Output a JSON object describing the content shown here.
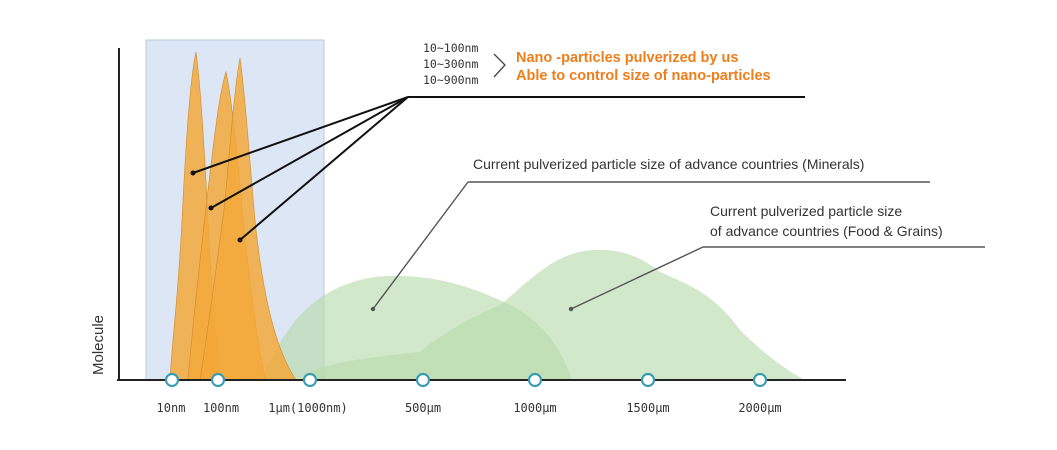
{
  "chart_data": {
    "type": "area",
    "ylabel": "Molecule",
    "x_ticks": [
      "10nm",
      "100nm",
      "1µm(1000nm)",
      "500µm",
      "1000µm",
      "1500µm",
      "2000µm"
    ],
    "highlight_region": "10nm – 1µm",
    "series": [
      {
        "color": "#f3a83a",
        "peak_near": "10nm"
      },
      {
        "color": "#f3a83a",
        "peak_near": "100nm"
      },
      {
        "color": "#f3a83a",
        "peak_near": "1µm"
      },
      {
        "color": "#b9dcae",
        "peak_near": "500µm"
      },
      {
        "color": "#b9dcae",
        "peak_near": "1000µm"
      }
    ],
    "annotations": {
      "sizes": [
        "10~100nm",
        "10~300nm",
        "10~900nm"
      ],
      "nano_line1": "Nano -particles pulverized by us",
      "nano_line2": "Able to control size of nano-particles",
      "minerals": "Current pulverized particle size of advance countries (Minerals)",
      "food_line1": "Current pulverized particle size",
      "food_line2": "of advance countries (Food & Grains)"
    },
    "colors": {
      "nano": "#f3a83a",
      "advance": "#b9dcae",
      "highlight": "#dce6f4",
      "orange_text": "#ef7d1a"
    }
  }
}
